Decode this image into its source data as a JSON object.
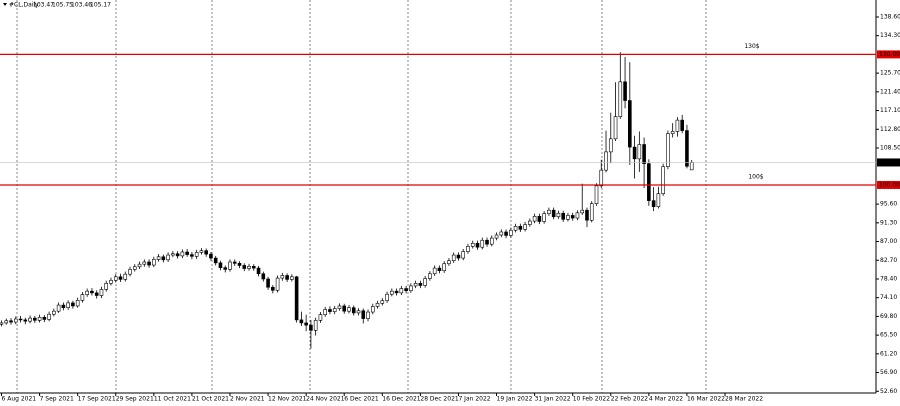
{
  "chart_data": {
    "type": "candlestick",
    "title": "#CL,Daily",
    "categories": [
      "6 Aug 2021",
      null,
      null,
      null,
      null,
      null,
      null,
      null,
      "7 Sep 2021",
      null,
      null,
      null,
      null,
      null,
      null,
      null,
      "17 Sep 2021",
      null,
      null,
      null,
      null,
      null,
      null,
      null,
      "29 Sep 2021",
      null,
      null,
      null,
      null,
      null,
      null,
      null,
      "11 Oct 2021",
      null,
      null,
      null,
      null,
      null,
      null,
      null,
      "21 Oct 2021",
      null,
      null,
      null,
      null,
      null,
      null,
      null,
      "2 Nov 2021",
      null,
      null,
      null,
      null,
      null,
      null,
      null,
      "12 Nov 2021",
      null,
      null,
      null,
      null,
      null,
      null,
      null,
      "24 Nov 2021",
      null,
      null,
      null,
      null,
      null,
      null,
      null,
      "6 Dec 2021",
      null,
      null,
      null,
      null,
      null,
      null,
      null,
      "16 Dec 2021",
      null,
      null,
      null,
      null,
      null,
      null,
      null,
      "28 Dec 2021",
      null,
      null,
      null,
      null,
      null,
      null,
      null,
      "7 Jan 2022",
      null,
      null,
      null,
      null,
      null,
      null,
      null,
      "19 Jan 2022",
      null,
      null,
      null,
      null,
      null,
      null,
      null,
      "31 Jan 2022",
      null,
      null,
      null,
      null,
      null,
      null,
      null,
      "10 Feb 2022",
      null,
      null,
      null,
      null,
      null,
      null,
      null,
      "22 Feb 2022",
      null,
      null,
      null,
      null,
      null,
      null,
      null,
      "4 Mar 2022",
      null,
      null,
      null,
      null,
      null,
      null,
      null,
      "16 Mar 2022",
      null,
      null,
      null,
      null,
      null,
      null,
      null,
      "28 Mar 2022",
      null
    ],
    "series": [
      {
        "up_color": "#ffffff",
        "down_color": "#000000",
        "open": [
          68.0,
          68.3,
          68.8,
          68.5,
          69.2,
          69.0,
          68.7,
          69.4,
          68.9,
          69.6,
          69.1,
          70.3,
          71.0,
          72.4,
          71.8,
          72.9,
          72.2,
          73.5,
          74.8,
          75.6,
          75.2,
          74.6,
          76.0,
          77.4,
          78.1,
          78.9,
          78.3,
          79.5,
          80.6,
          81.2,
          81.8,
          82.3,
          81.6,
          82.9,
          83.5,
          82.8,
          83.9,
          84.2,
          83.7,
          84.6,
          84.0,
          83.6,
          84.5,
          84.9,
          84.1,
          83.2,
          82.1,
          81.0,
          80.6,
          82.3,
          82.0,
          81.5,
          80.8,
          81.3,
          80.9,
          79.6,
          78.4,
          76.5,
          75.8,
          78.6,
          79.2,
          78.3,
          78.9,
          69.0,
          68.3,
          67.8,
          66.6,
          68.9,
          70.2,
          71.4,
          70.9,
          71.6,
          72.2,
          71.0,
          71.8,
          70.6,
          71.1,
          69.3,
          70.8,
          72.1,
          72.8,
          73.4,
          74.9,
          75.6,
          75.2,
          76.2,
          75.7,
          76.8,
          77.4,
          76.9,
          78.5,
          79.6,
          80.9,
          80.3,
          81.9,
          82.6,
          83.9,
          83.2,
          84.7,
          85.9,
          86.6,
          85.7,
          87.3,
          86.4,
          87.8,
          88.5,
          89.2,
          88.4,
          89.6,
          90.5,
          89.8,
          90.9,
          91.7,
          92.8,
          91.6,
          93.4,
          94.2,
          92.7,
          93.5,
          92.1,
          93.0,
          92.4,
          93.6,
          94.2,
          91.9,
          95.7,
          99.8,
          103.4,
          107.6,
          110.6,
          115.7,
          123.7,
          119.4,
          108.7,
          106.0,
          109.3,
          104.9,
          96.4,
          95.0,
          98.0,
          104.2,
          111.8,
          112.3,
          114.9,
          112.5,
          103.47
        ],
        "high": [
          68.9,
          69.3,
          69.4,
          69.8,
          69.9,
          69.5,
          70.0,
          69.9,
          70.2,
          70.1,
          70.9,
          71.6,
          73.0,
          73.0,
          73.5,
          73.4,
          74.1,
          75.4,
          76.2,
          76.3,
          75.8,
          76.6,
          78.0,
          78.7,
          79.5,
          79.6,
          80.1,
          81.2,
          81.8,
          82.4,
          82.9,
          82.9,
          83.5,
          84.1,
          84.0,
          84.5,
          84.8,
          84.8,
          85.2,
          85.3,
          84.6,
          85.1,
          85.5,
          85.4,
          84.6,
          83.7,
          82.6,
          81.5,
          82.9,
          82.9,
          82.5,
          82.0,
          81.9,
          81.8,
          81.4,
          80.1,
          78.9,
          77.0,
          79.2,
          79.8,
          79.7,
          79.5,
          79.1,
          70.9,
          70.2,
          69.0,
          69.5,
          70.8,
          72.0,
          72.1,
          72.2,
          72.8,
          72.7,
          72.4,
          72.3,
          71.7,
          71.6,
          71.4,
          72.7,
          73.4,
          74.0,
          75.5,
          76.2,
          76.2,
          76.8,
          76.8,
          77.4,
          78.0,
          78.0,
          79.1,
          80.2,
          81.5,
          81.5,
          82.5,
          83.2,
          84.5,
          84.5,
          85.3,
          86.5,
          87.2,
          87.2,
          87.9,
          87.9,
          88.4,
          89.1,
          89.8,
          89.8,
          90.2,
          91.1,
          91.1,
          91.5,
          92.3,
          93.4,
          93.4,
          94.0,
          94.8,
          94.8,
          94.1,
          94.1,
          93.6,
          93.6,
          94.2,
          100.3,
          94.8,
          96.3,
          100.4,
          105.8,
          112.5,
          116.6,
          123.6,
          130.5,
          129.4,
          128.2,
          111.3,
          112.3,
          110.9,
          105.9,
          99.5,
          99.6,
          104.9,
          112.5,
          114.2,
          115.6,
          116.1,
          113.8,
          105.75
        ],
        "low": [
          67.5,
          67.9,
          67.9,
          68.0,
          68.4,
          68.0,
          68.2,
          68.3,
          68.4,
          68.5,
          68.7,
          69.8,
          70.6,
          71.2,
          71.3,
          71.6,
          71.8,
          73.0,
          74.3,
          74.6,
          73.9,
          74.0,
          75.5,
          76.9,
          77.6,
          77.7,
          77.8,
          79.0,
          80.1,
          80.7,
          81.2,
          81.0,
          81.1,
          82.4,
          82.2,
          82.3,
          83.4,
          83.1,
          83.2,
          83.5,
          82.9,
          83.0,
          84.0,
          83.5,
          82.6,
          81.5,
          80.4,
          79.9,
          80.1,
          81.4,
          80.9,
          80.2,
          80.3,
          80.3,
          79.0,
          77.8,
          75.9,
          75.1,
          75.3,
          78.0,
          77.7,
          77.8,
          68.4,
          67.6,
          66.4,
          62.4,
          65.4,
          68.3,
          69.7,
          70.3,
          70.3,
          71.1,
          70.4,
          70.5,
          70.0,
          70.0,
          68.2,
          68.7,
          70.3,
          71.6,
          72.3,
          72.9,
          74.4,
          74.6,
          74.7,
          75.1,
          75.2,
          76.3,
          76.3,
          76.4,
          78.0,
          79.1,
          79.7,
          79.8,
          81.4,
          82.1,
          82.6,
          82.7,
          84.2,
          85.4,
          85.1,
          85.2,
          85.8,
          85.9,
          87.3,
          88.0,
          87.8,
          87.9,
          89.1,
          89.2,
          89.3,
          90.4,
          91.2,
          91.0,
          91.1,
          92.9,
          92.1,
          92.2,
          91.5,
          91.6,
          91.8,
          91.9,
          93.1,
          90.3,
          91.4,
          95.2,
          99.3,
          102.9,
          105.0,
          110.1,
          115.2,
          117.6,
          104.6,
          101.5,
          103.0,
          99.3,
          95.2,
          94.0,
          94.6,
          97.5,
          103.6,
          110.9,
          111.1,
          111.9,
          103.8,
          103.46
        ],
        "close": [
          68.3,
          68.8,
          68.5,
          69.2,
          69.0,
          68.7,
          69.4,
          68.9,
          69.6,
          69.1,
          70.3,
          71.0,
          72.4,
          71.8,
          72.9,
          72.2,
          73.5,
          74.8,
          75.6,
          75.2,
          74.6,
          76.0,
          77.4,
          78.1,
          78.9,
          78.3,
          79.5,
          80.6,
          81.2,
          81.8,
          82.3,
          81.6,
          82.9,
          83.5,
          82.8,
          83.9,
          84.2,
          83.7,
          84.6,
          84.0,
          83.6,
          84.5,
          84.9,
          84.1,
          83.2,
          82.1,
          81.0,
          80.6,
          82.3,
          82.0,
          81.5,
          80.8,
          81.3,
          80.9,
          79.6,
          78.4,
          76.5,
          75.8,
          78.6,
          79.2,
          78.3,
          78.9,
          69.0,
          68.3,
          67.8,
          66.6,
          68.9,
          70.2,
          71.4,
          70.9,
          71.6,
          72.2,
          71.0,
          71.8,
          70.6,
          71.1,
          69.3,
          70.8,
          72.1,
          72.8,
          73.4,
          74.9,
          75.6,
          75.2,
          76.2,
          75.7,
          76.8,
          77.4,
          76.9,
          78.5,
          79.6,
          80.9,
          80.3,
          81.9,
          82.6,
          83.9,
          83.2,
          84.7,
          85.9,
          86.6,
          85.7,
          87.3,
          86.4,
          87.8,
          88.5,
          89.2,
          88.4,
          89.6,
          90.5,
          89.8,
          90.9,
          91.7,
          92.8,
          91.6,
          93.4,
          94.2,
          92.7,
          93.5,
          92.1,
          93.0,
          92.4,
          93.6,
          94.2,
          91.9,
          95.7,
          99.8,
          103.4,
          107.6,
          110.6,
          115.7,
          123.7,
          119.4,
          108.7,
          106.0,
          109.3,
          104.9,
          96.4,
          95.0,
          98.0,
          104.2,
          111.8,
          112.3,
          114.9,
          112.5,
          104.3,
          105.17
        ]
      }
    ],
    "ylim": [
      52.2,
      142.5
    ],
    "yticks": [
      {
        "value": 138.6,
        "label": "138.60"
      },
      {
        "value": 134.3,
        "label": "134.30"
      },
      {
        "value": 125.7,
        "label": "125.70"
      },
      {
        "value": 121.4,
        "label": "121.40"
      },
      {
        "value": 117.1,
        "label": "117.10"
      },
      {
        "value": 112.8,
        "label": "112.80"
      },
      {
        "value": 108.5,
        "label": "108.50"
      },
      {
        "value": 95.6,
        "label": "95.60"
      },
      {
        "value": 91.3,
        "label": "91.30"
      },
      {
        "value": 87,
        "label": "87.00"
      },
      {
        "value": 82.7,
        "label": "82.70"
      },
      {
        "value": 78.4,
        "label": "78.40"
      },
      {
        "value": 74.1,
        "label": "74.10"
      },
      {
        "value": 69.8,
        "label": "69.80"
      },
      {
        "value": 65.5,
        "label": "65.50"
      },
      {
        "value": 61.2,
        "label": "61.20"
      },
      {
        "value": 56.9,
        "label": "56.90"
      },
      {
        "value": 52.6,
        "label": "52.60"
      }
    ],
    "levels": [
      {
        "value": 130,
        "axis_label": "130.00",
        "text": "130$",
        "color": "#e00000"
      },
      {
        "value": 100,
        "axis_label": "100.00",
        "text": "100$",
        "color": "#e00000"
      }
    ]
  }
}
